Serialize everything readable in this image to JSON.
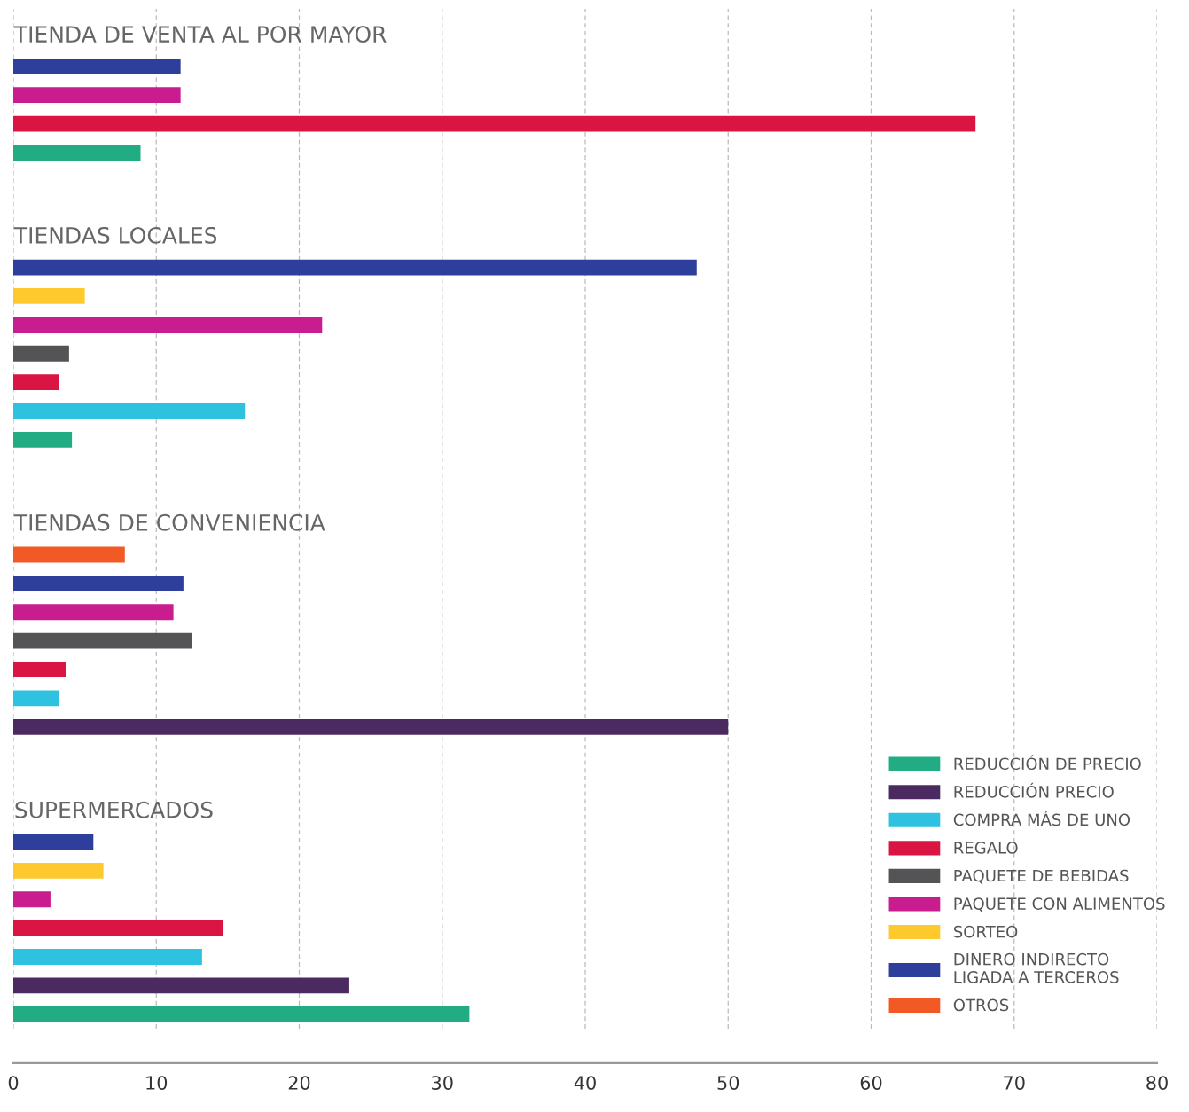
{
  "chart_data": {
    "type": "bar",
    "orientation": "horizontal",
    "categories": [
      "TIENDA DE VENTA AL POR MAYOR",
      null,
      null,
      null,
      null,
      null,
      null,
      "TIENDAS LOCALES",
      null,
      null,
      null,
      null,
      null,
      null,
      null,
      null,
      null,
      "TIENDAS DE CONVENIENCIA",
      null,
      null,
      null,
      null,
      null,
      null,
      null,
      null,
      null,
      "SUPERMERCADOS",
      null,
      null,
      null,
      null,
      null,
      null,
      null
    ],
    "xlim": [
      0,
      80
    ],
    "xticks": [
      0,
      10,
      20,
      30,
      40,
      50,
      60,
      70,
      80
    ],
    "grid": "x",
    "legend": "bottom right",
    "series": [
      {
        "name": "REDUCCIÓN DE PRECIO",
        "color": "#21ac84",
        "values": [
          null,
          null,
          null,
          null,
          8.9,
          null,
          null,
          null,
          null,
          null,
          null,
          null,
          null,
          null,
          4.1,
          null,
          null,
          null,
          null,
          null,
          null,
          null,
          null,
          null,
          null,
          null,
          null,
          null,
          null,
          null,
          null,
          null,
          null,
          null,
          31.9
        ]
      },
      {
        "name": "REDUCCIÓN PRECIO",
        "color": "#4a2a61",
        "values": [
          null,
          null,
          null,
          null,
          null,
          null,
          null,
          null,
          null,
          null,
          null,
          null,
          null,
          null,
          null,
          null,
          null,
          null,
          null,
          null,
          null,
          null,
          null,
          null,
          50.0,
          null,
          null,
          null,
          null,
          null,
          null,
          null,
          null,
          23.5,
          null
        ]
      },
      {
        "name": "COMPRA MÁS DE UNO",
        "color": "#2ec2e0",
        "values": [
          null,
          null,
          null,
          null,
          null,
          null,
          null,
          null,
          null,
          null,
          null,
          null,
          null,
          16.2,
          null,
          null,
          null,
          null,
          null,
          null,
          null,
          null,
          null,
          3.2,
          null,
          null,
          null,
          null,
          null,
          null,
          null,
          null,
          13.2,
          null,
          null
        ]
      },
      {
        "name": "REGALO",
        "color": "#da1443",
        "values": [
          null,
          null,
          null,
          67.3,
          null,
          null,
          null,
          null,
          null,
          null,
          null,
          null,
          3.2,
          null,
          null,
          null,
          null,
          null,
          null,
          null,
          null,
          null,
          3.7,
          null,
          null,
          null,
          null,
          null,
          null,
          null,
          null,
          14.7,
          null,
          null,
          null
        ]
      },
      {
        "name": "PAQUETE DE BEBIDAS",
        "color": "#545456",
        "values": [
          null,
          null,
          null,
          null,
          null,
          null,
          null,
          null,
          null,
          null,
          null,
          3.9,
          null,
          null,
          null,
          null,
          null,
          null,
          null,
          null,
          null,
          12.5,
          null,
          null,
          null,
          null,
          null,
          null,
          null,
          null,
          null,
          null,
          null,
          null,
          null
        ]
      },
      {
        "name": "PAQUETE CON ALIMENTOS",
        "color": "#c81c8f",
        "values": [
          null,
          null,
          11.7,
          null,
          null,
          null,
          null,
          null,
          null,
          null,
          21.6,
          null,
          null,
          null,
          null,
          null,
          null,
          null,
          null,
          null,
          11.2,
          null,
          null,
          null,
          null,
          null,
          null,
          null,
          null,
          null,
          2.6,
          null,
          null,
          null,
          null
        ]
      },
      {
        "name": "SORTEO",
        "color": "#fec92c",
        "values": [
          null,
          null,
          null,
          null,
          null,
          null,
          null,
          null,
          null,
          5.0,
          null,
          null,
          null,
          null,
          null,
          null,
          null,
          null,
          null,
          null,
          null,
          null,
          null,
          null,
          null,
          null,
          null,
          null,
          null,
          6.3,
          null,
          null,
          null,
          null,
          null
        ]
      },
      {
        "name": "DINERO INDIRECTO\nLIGADA A TERCEROS",
        "color": "#2e3f9b",
        "values": [
          null,
          11.7,
          null,
          null,
          null,
          null,
          null,
          null,
          47.8,
          null,
          null,
          null,
          null,
          null,
          null,
          null,
          null,
          null,
          null,
          11.9,
          null,
          null,
          null,
          null,
          null,
          null,
          null,
          null,
          5.6,
          null,
          null,
          null,
          null,
          null,
          null
        ]
      },
      {
        "name": "OTROS",
        "color": "#f15a24",
        "values": [
          null,
          null,
          null,
          null,
          null,
          null,
          null,
          null,
          null,
          null,
          null,
          null,
          null,
          null,
          null,
          null,
          null,
          null,
          7.8,
          null,
          null,
          null,
          null,
          null,
          null,
          null,
          null,
          null,
          null,
          null,
          null,
          null,
          null,
          null,
          null
        ]
      }
    ]
  }
}
